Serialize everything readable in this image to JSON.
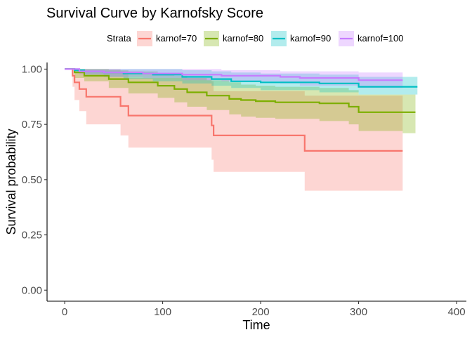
{
  "chart_data": {
    "type": "line",
    "title": "Survival Curve by Karnofsky Score",
    "xlabel": "Time",
    "ylabel": "Survival probability",
    "xlim": [
      -18,
      410
    ],
    "ylim": [
      -0.05,
      1.03
    ],
    "x_ticks": [
      0,
      100,
      200,
      300,
      400
    ],
    "x_tick_labels": [
      "0",
      "100",
      "200",
      "300",
      "400"
    ],
    "y_ticks": [
      0,
      0.25,
      0.5,
      0.75,
      1
    ],
    "y_tick_labels": [
      "0.00",
      "0.25",
      "0.50",
      "0.75",
      "1.00"
    ],
    "grid": false,
    "legend_title": "Strata",
    "legend_position": "top",
    "step": true,
    "series": [
      {
        "name": "karnof=70",
        "color": "#F8766D",
        "x": [
          0,
          8,
          10,
          15,
          22,
          57,
          65,
          150,
          152,
          245,
          345
        ],
        "y": [
          1.0,
          0.97,
          0.94,
          0.91,
          0.875,
          0.833,
          0.79,
          0.745,
          0.7,
          0.63,
          0.63
        ],
        "lower": [
          1.0,
          0.92,
          0.86,
          0.81,
          0.75,
          0.7,
          0.645,
          0.59,
          0.535,
          0.45,
          0.45
        ],
        "upper": [
          1.0,
          1.0,
          1.0,
          1.0,
          1.0,
          0.99,
          0.96,
          0.945,
          0.9,
          0.88,
          0.88
        ]
      },
      {
        "name": "karnof=80",
        "color": "#7CAE00",
        "x": [
          0,
          10,
          20,
          45,
          65,
          95,
          112,
          125,
          145,
          168,
          180,
          195,
          215,
          260,
          290,
          300,
          345,
          350,
          358
        ],
        "y": [
          1.0,
          0.985,
          0.97,
          0.955,
          0.94,
          0.925,
          0.91,
          0.895,
          0.88,
          0.865,
          0.86,
          0.855,
          0.85,
          0.845,
          0.83,
          0.805,
          0.805,
          0.805,
          0.805
        ],
        "lower": [
          1.0,
          0.96,
          0.945,
          0.915,
          0.89,
          0.87,
          0.85,
          0.83,
          0.815,
          0.795,
          0.785,
          0.78,
          0.775,
          0.765,
          0.75,
          0.72,
          0.71,
          0.71,
          0.71
        ],
        "upper": [
          1.0,
          1.0,
          1.0,
          0.995,
          0.99,
          0.98,
          0.97,
          0.96,
          0.95,
          0.94,
          0.93,
          0.925,
          0.92,
          0.915,
          0.905,
          0.885,
          0.885,
          0.885,
          0.885
        ]
      },
      {
        "name": "karnof=90",
        "color": "#00BFC4",
        "x": [
          0,
          10,
          20,
          40,
          60,
          90,
          120,
          150,
          170,
          200,
          260,
          300,
          345,
          360
        ],
        "y": [
          1.0,
          0.995,
          0.99,
          0.985,
          0.98,
          0.975,
          0.965,
          0.955,
          0.945,
          0.94,
          0.935,
          0.92,
          0.92,
          0.92
        ],
        "lower": [
          1.0,
          0.985,
          0.975,
          0.965,
          0.955,
          0.945,
          0.935,
          0.925,
          0.915,
          0.905,
          0.895,
          0.885,
          0.885,
          0.885
        ],
        "upper": [
          1.0,
          1.0,
          1.0,
          1.0,
          1.0,
          1.0,
          0.995,
          0.99,
          0.985,
          0.98,
          0.975,
          0.965,
          0.965,
          0.965
        ]
      },
      {
        "name": "karnof=100",
        "color": "#C77CFF",
        "x": [
          0,
          15,
          40,
          80,
          120,
          160,
          220,
          240,
          300,
          345
        ],
        "y": [
          1.0,
          0.99,
          0.985,
          0.98,
          0.975,
          0.97,
          0.965,
          0.96,
          0.95,
          0.95
        ],
        "lower": [
          1.0,
          0.975,
          0.965,
          0.96,
          0.95,
          0.945,
          0.935,
          0.925,
          0.915,
          0.915
        ],
        "upper": [
          1.0,
          1.0,
          1.0,
          1.0,
          1.0,
          0.995,
          0.99,
          0.99,
          0.985,
          0.985
        ]
      }
    ]
  }
}
